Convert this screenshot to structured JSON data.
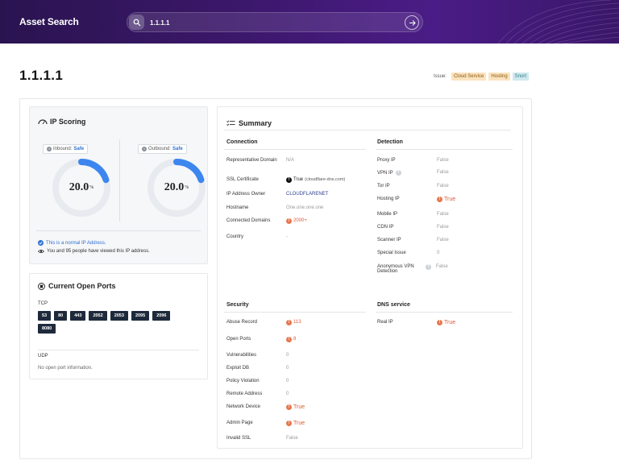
{
  "header": {
    "brand": "Asset Search",
    "search_value": "1.1.1.1",
    "colors": {
      "bar": "#3a1768",
      "accent": "#2e6fd1"
    }
  },
  "page": {
    "title": "1.1.1.1",
    "issue_label": "Issue:",
    "tags": [
      "Cloud Service",
      "Hosting",
      "Snort"
    ]
  },
  "scoring": {
    "title": "IP Scoring",
    "inbound": {
      "label": "Inbound:",
      "status": "Safe",
      "value": "20.0",
      "unit": "%",
      "fraction": 0.2
    },
    "outbound": {
      "label": "Outbound:",
      "status": "Safe",
      "value": "20.0",
      "unit": "%",
      "fraction": 0.2
    },
    "normal_note": "This is a normal IP Address.",
    "viewed_note": "You and 95 people have viewed this IP address."
  },
  "ports": {
    "title": "Current Open Ports",
    "tcp_label": "TCP",
    "tcp": [
      "53",
      "80",
      "443",
      "2052",
      "2053",
      "2095",
      "2096",
      "8080"
    ],
    "udp_label": "UDP",
    "udp_empty": "No open port information."
  },
  "summary": {
    "title": "Summary",
    "connection": {
      "heading": "Connection",
      "representative_domain": {
        "label": "Representative Domain",
        "value": "N/A"
      },
      "ssl_certificate": {
        "label": "SSL Certificate",
        "value": "True",
        "detail": "(cloudflare-dns.com)"
      },
      "ip_owner": {
        "label": "IP Address Owner",
        "value": "CLOUDFLARENET"
      },
      "hostname": {
        "label": "Hostname",
        "value": "One.one.one.one"
      },
      "connected_domains": {
        "label": "Connected Domains",
        "value": "2000+"
      },
      "country": {
        "label": "Country",
        "value": "-"
      }
    },
    "detection": {
      "heading": "Detection",
      "proxy_ip": {
        "label": "Proxy IP",
        "value": "False"
      },
      "vpn_ip": {
        "label": "VPN IP",
        "value": "False"
      },
      "tor_ip": {
        "label": "Tor IP",
        "value": "False"
      },
      "hosting_ip": {
        "label": "Hosting IP",
        "value": "True"
      },
      "mobile_ip": {
        "label": "Mobile IP",
        "value": "False"
      },
      "cdn_ip": {
        "label": "CDN IP",
        "value": "False"
      },
      "scanner_ip": {
        "label": "Scanner IP",
        "value": "False"
      },
      "special_issue": {
        "label": "Special Issue",
        "value": "0"
      },
      "anon_vpn": {
        "label": "Anonymous VPN Detection",
        "value": "False"
      }
    },
    "security": {
      "heading": "Security",
      "abuse_record": {
        "label": "Abuse Record",
        "value": "113"
      },
      "open_ports": {
        "label": "Open Ports",
        "value": "8"
      },
      "vulnerabilities": {
        "label": "Vulnerabilities",
        "value": "0"
      },
      "exploit_db": {
        "label": "Exploit DB",
        "value": "0"
      },
      "policy_violation": {
        "label": "Policy Violation",
        "value": "0"
      },
      "remote_address": {
        "label": "Remote Address",
        "value": "0"
      },
      "network_device": {
        "label": "Network Device",
        "value": "True"
      },
      "admin_page": {
        "label": "Admin Page",
        "value": "True"
      },
      "invalid_ssl": {
        "label": "Invalid SSL",
        "value": "False"
      }
    },
    "dns": {
      "heading": "DNS service",
      "real_ip": {
        "label": "Real IP",
        "value": "True"
      }
    }
  }
}
